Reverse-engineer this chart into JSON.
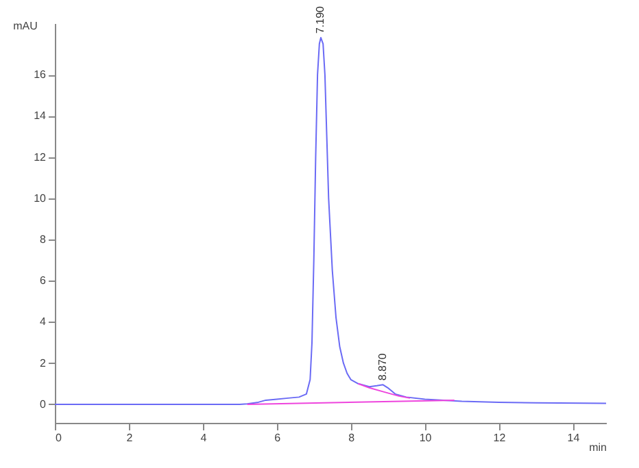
{
  "chart_data": {
    "type": "line",
    "xlabel": "min",
    "ylabel": "mAU",
    "xlim": [
      0,
      14.9
    ],
    "ylim": [
      -0.9,
      18.5
    ],
    "xticks": [
      0,
      2,
      4,
      6,
      8,
      10,
      12,
      14
    ],
    "yticks": [
      0,
      2,
      4,
      6,
      8,
      10,
      12,
      14,
      16
    ],
    "grid": false,
    "marker": "none",
    "line_style": "solid",
    "annotations": [
      {
        "text": "7.190",
        "x": 7.19,
        "y": 17.8
      },
      {
        "text": "8.870",
        "x": 8.87,
        "y": 0.95
      }
    ],
    "series": [
      {
        "color": "#6a6af5",
        "x": [
          0,
          5.0,
          5.2,
          5.5,
          5.7,
          6.0,
          6.3,
          6.6,
          6.8,
          6.9,
          6.95,
          7.0,
          7.05,
          7.1,
          7.15,
          7.19,
          7.25,
          7.3,
          7.35,
          7.4,
          7.5,
          7.6,
          7.7,
          7.8,
          7.9,
          8.0,
          8.2,
          8.5,
          8.7,
          8.87,
          9.0,
          9.2,
          9.5,
          10.0,
          10.5,
          11.0,
          12.0,
          13.0,
          14.9
        ],
        "values": [
          0,
          0,
          0.02,
          0.1,
          0.2,
          0.25,
          0.3,
          0.35,
          0.5,
          1.2,
          3,
          7,
          12,
          16,
          17.5,
          17.8,
          17.5,
          16,
          13,
          10,
          6.5,
          4.2,
          2.8,
          2.0,
          1.5,
          1.2,
          1.0,
          0.85,
          0.9,
          0.95,
          0.8,
          0.5,
          0.35,
          0.25,
          0.2,
          0.15,
          0.1,
          0.07,
          0.05
        ]
      },
      {
        "color": "#ee44dd",
        "x": [
          5.2,
          10.8
        ],
        "values": [
          0,
          0.2
        ]
      },
      {
        "color": "#ee44dd",
        "x": [
          8.2,
          8.5,
          8.9,
          9.3,
          9.6
        ],
        "values": [
          1.0,
          0.8,
          0.6,
          0.4,
          0.3
        ]
      }
    ]
  }
}
